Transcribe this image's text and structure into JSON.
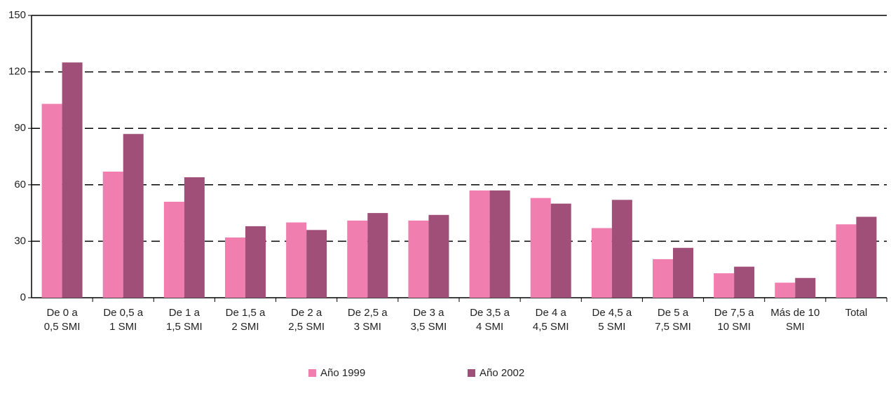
{
  "chart_data": {
    "type": "bar",
    "categories": [
      "De 0 a\n0,5 SMI",
      "De 0,5 a\n1 SMI",
      "De 1 a\n1,5 SMI",
      "De 1,5 a\n2 SMI",
      "De 2 a\n2,5 SMI",
      "De 2,5 a\n3 SMI",
      "De 3 a\n3,5 SMI",
      "De 3,5 a\n4 SMI",
      "De 4 a\n4,5 SMI",
      "De 4,5 a\n5 SMI",
      "De 5 a\n7,5 SMI",
      "De 7,5 a\n10 SMI",
      "Más de 10\nSMI",
      "Total"
    ],
    "series": [
      {
        "name": "Año 1999",
        "color": "#f07fb0",
        "values": [
          103,
          67,
          51,
          32,
          40,
          41,
          41,
          57,
          53,
          37,
          20.5,
          13,
          8,
          39
        ]
      },
      {
        "name": "Año 2002",
        "color": "#a04f78",
        "values": [
          125,
          87,
          64,
          38,
          36,
          45,
          44,
          57,
          50,
          52,
          26.5,
          16.5,
          10.5,
          43
        ]
      }
    ],
    "ylim": [
      0,
      150
    ],
    "yticks": [
      0,
      30,
      60,
      90,
      120,
      150
    ],
    "grid": true,
    "legend": "bottom"
  }
}
